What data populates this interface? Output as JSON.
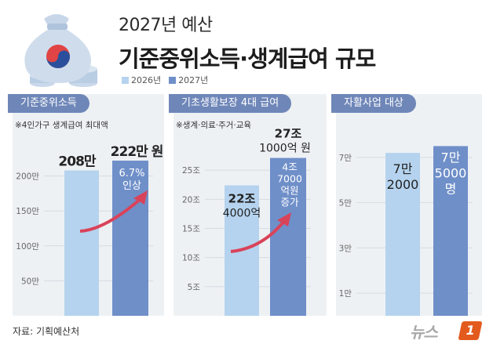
{
  "header": {
    "title_line1": "2027년 예산",
    "title_line2": "기준중위소득·생계급여 규모"
  },
  "legend": {
    "series_2026": "2026년",
    "series_2027": "2027년",
    "color_2026": "#b5d3ee",
    "color_2027": "#6f8fc9"
  },
  "panels": [
    {
      "title": "기준중위소득",
      "note": "※4인가구 생계급여 최대액",
      "bar_2026_label": "208만",
      "bar_2027_label": "222만 원",
      "inside_label_line1": "6.7%",
      "inside_label_line2": "인상",
      "ticks": [
        "50만",
        "100만",
        "150만",
        "200만"
      ]
    },
    {
      "title": "기초생활보장 4대 급여",
      "note": "※생계·의료·주거·교육",
      "bar_2026_label_line1": "22조",
      "bar_2026_label_line2": "4000억",
      "bar_2027_label_line1": "27조",
      "bar_2027_label_line2": "1000억 원",
      "inside_label_lines": [
        "4조",
        "7000",
        "억원",
        "증가"
      ],
      "ticks": [
        "5조",
        "10조",
        "15조",
        "20조",
        "25조"
      ]
    },
    {
      "title": "자활사업 대상",
      "bar_2026_label_line1": "7만",
      "bar_2026_label_line2": "2000",
      "bar_2027_label_line1": "7만",
      "bar_2027_label_line2": "5000",
      "bar_2027_label_line3": "명",
      "ticks": [
        "1만",
        "3만",
        "5만",
        "7만"
      ]
    }
  ],
  "footer": {
    "source": "자료: 기획예산처",
    "logo_text": "뉴스",
    "logo_mark": "1"
  },
  "chart_data": [
    {
      "type": "bar",
      "title": "기준중위소득",
      "note": "※4인가구 생계급여 최대액",
      "categories": [
        "2026년",
        "2027년"
      ],
      "values": [
        208,
        222
      ],
      "unit": "만 원",
      "ylim": [
        0,
        250
      ],
      "yticks": [
        50,
        100,
        150,
        200
      ],
      "annotation": "6.7% 인상"
    },
    {
      "type": "bar",
      "title": "기초생활보장 4대 급여",
      "note": "※생계·의료·주거·교육",
      "categories": [
        "2026년",
        "2027년"
      ],
      "values": [
        22.4,
        27.1
      ],
      "unit": "조 원",
      "ylim": [
        0,
        30
      ],
      "yticks": [
        5,
        10,
        15,
        20,
        25
      ],
      "annotation": "4조 7000억원 증가"
    },
    {
      "type": "bar",
      "title": "자활사업 대상",
      "categories": [
        "2026년",
        "2027년"
      ],
      "values": [
        7.2,
        7.5
      ],
      "unit": "만 명",
      "ylim": [
        0,
        8
      ],
      "yticks": [
        1,
        3,
        5,
        7
      ]
    }
  ]
}
